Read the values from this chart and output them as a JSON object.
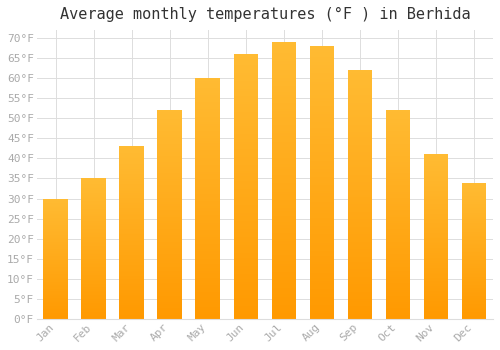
{
  "title": "Average monthly temperatures (°F ) in Berhida",
  "months": [
    "Jan",
    "Feb",
    "Mar",
    "Apr",
    "May",
    "Jun",
    "Jul",
    "Aug",
    "Sep",
    "Oct",
    "Nov",
    "Dec"
  ],
  "values": [
    30,
    35,
    43,
    52,
    60,
    66,
    69,
    68,
    62,
    52,
    41,
    34
  ],
  "bar_color_top": "#FFBB33",
  "bar_color_bottom": "#FF9900",
  "background_color": "#FFFFFF",
  "grid_color": "#DDDDDD",
  "ylim": [
    0,
    72
  ],
  "yticks": [
    0,
    5,
    10,
    15,
    20,
    25,
    30,
    35,
    40,
    45,
    50,
    55,
    60,
    65,
    70
  ],
  "title_fontsize": 11,
  "tick_fontsize": 8,
  "text_color": "#AAAAAA",
  "title_color": "#333333"
}
